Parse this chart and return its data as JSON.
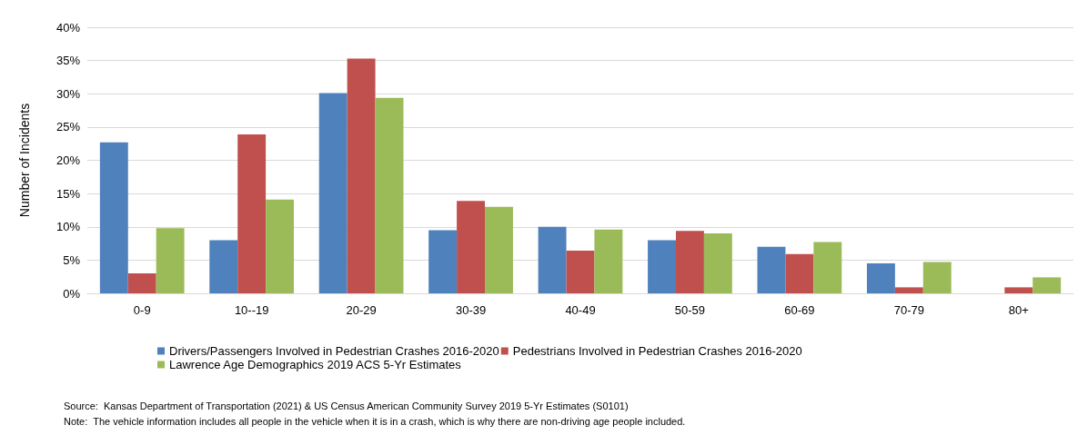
{
  "chart_data": {
    "type": "bar",
    "ylabel": "Number of Incidents",
    "categories": [
      "0-9",
      "10--19",
      "20-29",
      "30-39",
      "40-49",
      "50-59",
      "60-69",
      "70-79",
      "80+"
    ],
    "series": [
      {
        "name": "Drivers/Passengers Involved in Pedestrian Crashes 2016-2020",
        "color": "#4f81bd",
        "values": [
          22.7,
          8.0,
          30.1,
          9.5,
          10.0,
          8.0,
          7.0,
          4.5,
          0
        ]
      },
      {
        "name": "Pedestrians Involved in Pedestrian Crashes 2016-2020",
        "color": "#c0504d",
        "values": [
          3.0,
          23.9,
          35.3,
          13.9,
          6.4,
          9.4,
          5.9,
          0.9,
          0.9
        ]
      },
      {
        "name": "Lawrence Age Demographics 2019 ACS 5-Yr Estimates",
        "color": "#9bbb59",
        "values": [
          9.8,
          14.1,
          29.4,
          13.0,
          9.6,
          9.0,
          7.7,
          4.7,
          2.4
        ]
      }
    ],
    "ylim": [
      0,
      40
    ],
    "yticks": [
      {
        "value": 0,
        "label": "0%"
      },
      {
        "value": 5,
        "label": "5%"
      },
      {
        "value": 10,
        "label": "10%"
      },
      {
        "value": 15,
        "label": "15%"
      },
      {
        "value": 20,
        "label": "20%"
      },
      {
        "value": 25,
        "label": "25%"
      },
      {
        "value": 30,
        "label": "30%"
      },
      {
        "value": 35,
        "label": "35%"
      },
      {
        "value": 40,
        "label": "40%"
      }
    ],
    "grid": "y",
    "legend": "bottom",
    "annotations": [
      "Source:  Kansas Department of Transportation (2021) & US Census American Community Survey 2019 5-Yr Estimates (S0101)",
      "Note:  The vehicle information includes all people in the vehicle when it is in a crash, which is why there are non-driving age people included."
    ]
  }
}
